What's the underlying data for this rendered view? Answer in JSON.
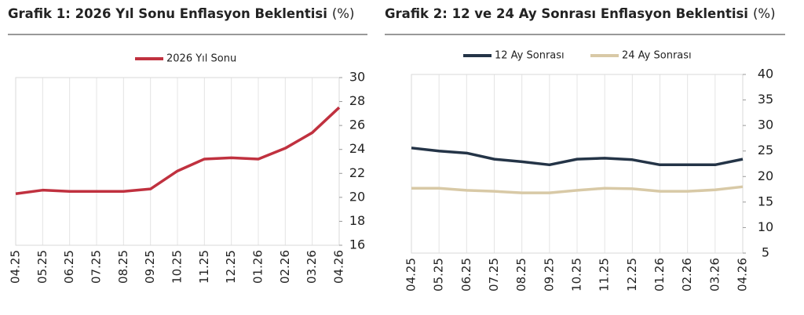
{
  "chart_data": [
    {
      "type": "line",
      "title": "Grafik 1: 2026 Yıl Sonu Enflasyon Beklentisi",
      "unit": "(%)",
      "categories": [
        "04.25",
        "05.25",
        "06.25",
        "07.25",
        "08.25",
        "09.25",
        "10.25",
        "11.25",
        "12.25",
        "01.26",
        "02.26",
        "03.26",
        "04.26"
      ],
      "series": [
        {
          "name": "2026 Yıl Sonu",
          "color": "#c0313f",
          "values": [
            20.3,
            20.6,
            20.5,
            20.5,
            20.5,
            20.7,
            22.2,
            23.2,
            23.3,
            23.2,
            24.1,
            25.4,
            27.5
          ]
        }
      ],
      "ylim": [
        16,
        30
      ],
      "yticks": [
        16,
        18,
        20,
        22,
        24,
        26,
        28,
        30
      ],
      "grid": true
    },
    {
      "type": "line",
      "title": "Grafik 2: 12 ve 24 Ay Sonrası Enflasyon Beklentisi",
      "unit": "(%)",
      "categories": [
        "04.25",
        "05.25",
        "06.25",
        "07.25",
        "08.25",
        "09.25",
        "10.25",
        "11.25",
        "12.25",
        "01.26",
        "02.26",
        "03.26",
        "04.26"
      ],
      "series": [
        {
          "name": "12 Ay Sonrası",
          "color": "#243447",
          "values": [
            25.6,
            25.0,
            24.6,
            23.4,
            22.9,
            22.3,
            23.4,
            23.6,
            23.3,
            22.3,
            22.3,
            22.3,
            23.4
          ]
        },
        {
          "name": "24 Ay Sonrası",
          "color": "#d8c9a6",
          "values": [
            17.7,
            17.7,
            17.3,
            17.1,
            16.8,
            16.8,
            17.3,
            17.7,
            17.6,
            17.1,
            17.1,
            17.4,
            18.0
          ]
        }
      ],
      "ylim": [
        5,
        40
      ],
      "yticks": [
        5,
        10,
        15,
        20,
        25,
        30,
        35,
        40
      ],
      "grid": true
    }
  ]
}
